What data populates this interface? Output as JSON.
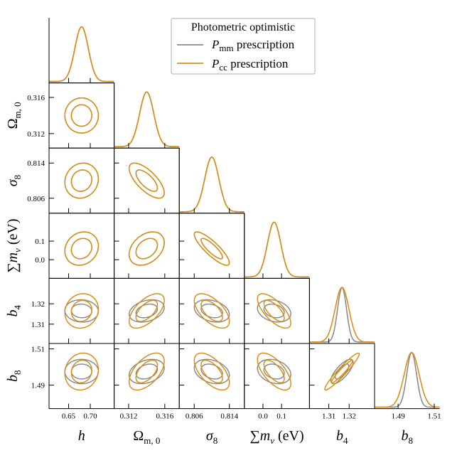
{
  "legend": {
    "title": "Photometric optimistic",
    "entries": [
      {
        "main": "P",
        "sub": "mm",
        "rest": " prescription",
        "color": "#8c8c8c"
      },
      {
        "main": "P",
        "sub": "cc",
        "rest": " prescription",
        "color": "#d89014"
      }
    ]
  },
  "chart_data": {
    "type": "corner",
    "parameters": [
      {
        "symbol": "h",
        "sub": "",
        "suffix": "",
        "ticks": [
          0.65,
          0.7
        ],
        "tick_labels": [
          "0.65",
          "0.70"
        ],
        "range": [
          0.605,
          0.755
        ],
        "fiducial": 0.68,
        "sigma": {
          "mm": 0.0155,
          "cc": 0.0155
        }
      },
      {
        "symbol": "Ω",
        "sub": "m, 0",
        "suffix": "",
        "ticks": [
          0.312,
          0.316
        ],
        "tick_labels": [
          "0.312",
          "0.316"
        ],
        "range": [
          0.3104,
          0.3176
        ],
        "fiducial": 0.314,
        "sigma": {
          "mm": 0.00078,
          "cc": 0.00078
        }
      },
      {
        "symbol": "σ",
        "sub": "8",
        "suffix": "",
        "ticks": [
          0.806,
          0.814
        ],
        "tick_labels": [
          "0.806",
          "0.814"
        ],
        "range": [
          0.8026,
          0.8174
        ],
        "fiducial": 0.81,
        "sigma": {
          "mm": 0.0016,
          "cc": 0.0016
        }
      },
      {
        "symbol": "∑m",
        "sub": "ν",
        "suffix": " (eV)",
        "ticks": [
          0.0,
          0.1
        ],
        "tick_labels": [
          "0.0",
          "0.1"
        ],
        "range": [
          -0.1,
          0.25
        ],
        "fiducial": 0.06,
        "sigma": {
          "mm": 0.036,
          "cc": 0.036
        }
      },
      {
        "symbol": "b",
        "sub": "4",
        "suffix": "",
        "ticks": [
          1.31,
          1.32
        ],
        "tick_labels": [
          "1.31",
          "1.32"
        ],
        "range": [
          1.3005,
          1.3325
        ],
        "fiducial": 1.3165,
        "sigma": {
          "mm": 0.0022,
          "cc": 0.0034
        }
      },
      {
        "symbol": "b",
        "sub": "8",
        "suffix": "",
        "ticks": [
          1.49,
          1.51
        ],
        "tick_labels": [
          "1.49",
          "1.51"
        ],
        "range": [
          1.477,
          1.513
        ],
        "fiducial": 1.4975,
        "sigma": {
          "mm": 0.0027,
          "cc": 0.0041
        }
      }
    ],
    "correlations": {
      "mm": {
        "1,0": 0.0,
        "2,0": 0.1,
        "2,1": -0.7,
        "3,0": 0.15,
        "3,1": 0.35,
        "3,2": -0.85,
        "4,0": -0.05,
        "4,1": 0.3,
        "4,2": -0.3,
        "4,3": -0.25,
        "5,0": 0.0,
        "5,1": 0.3,
        "5,2": -0.3,
        "5,3": -0.25,
        "5,4": 0.75
      },
      "cc": {
        "1,0": 0.0,
        "2,0": 0.1,
        "2,1": -0.7,
        "3,0": 0.15,
        "3,1": 0.35,
        "3,2": -0.85,
        "4,0": 0.1,
        "4,1": 0.6,
        "4,2": -0.6,
        "4,3": -0.7,
        "5,0": 0.1,
        "5,1": 0.55,
        "5,2": -0.6,
        "5,3": -0.65,
        "5,4": 0.95
      }
    },
    "series": [
      {
        "key": "mm",
        "name": "P_mm prescription",
        "color": "#8c8c8c"
      },
      {
        "key": "cc",
        "name": "P_cc prescription",
        "color": "#d89014"
      }
    ],
    "contour_levels_sigma": [
      1,
      2
    ],
    "grid": false
  }
}
